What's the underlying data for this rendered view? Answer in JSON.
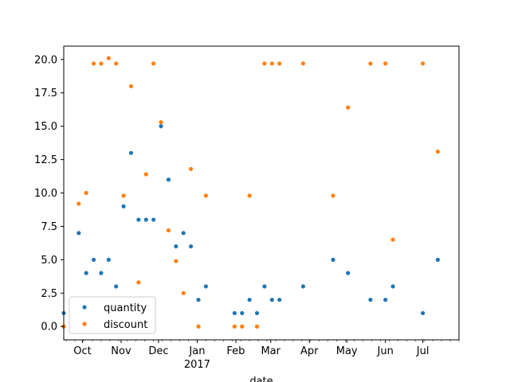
{
  "chart_data": {
    "type": "scatter",
    "title": "",
    "xlabel": "date",
    "ylabel": "",
    "xlim": [
      "2016-09-16",
      "2017-07-30"
    ],
    "ylim": [
      -1.0,
      21.0
    ],
    "grid": false,
    "legend_position": "lower-left",
    "x_ticks": [
      {
        "date": "2016-10-01",
        "label": "Oct"
      },
      {
        "date": "2016-11-01",
        "label": "Nov"
      },
      {
        "date": "2016-12-01",
        "label": "Dec"
      },
      {
        "date": "2017-01-01",
        "label": "Jan",
        "sublabel": "2017"
      },
      {
        "date": "2017-02-01",
        "label": "Feb"
      },
      {
        "date": "2017-03-01",
        "label": "Mar"
      },
      {
        "date": "2017-04-01",
        "label": "Apr"
      },
      {
        "date": "2017-05-01",
        "label": "May"
      },
      {
        "date": "2017-06-01",
        "label": "Jun"
      },
      {
        "date": "2017-07-01",
        "label": "Jul"
      }
    ],
    "y_ticks": [
      0.0,
      2.5,
      5.0,
      7.5,
      10.0,
      12.5,
      15.0,
      17.5,
      20.0
    ],
    "series": [
      {
        "name": "quantity",
        "color": "#1f77b4",
        "points": [
          {
            "x": "2016-09-16",
            "y": 1
          },
          {
            "x": "2016-09-28",
            "y": 7
          },
          {
            "x": "2016-10-04",
            "y": 4
          },
          {
            "x": "2016-10-10",
            "y": 5
          },
          {
            "x": "2016-10-16",
            "y": 4
          },
          {
            "x": "2016-10-22",
            "y": 5
          },
          {
            "x": "2016-10-28",
            "y": 3
          },
          {
            "x": "2016-11-03",
            "y": 9
          },
          {
            "x": "2016-11-09",
            "y": 13
          },
          {
            "x": "2016-11-15",
            "y": 8
          },
          {
            "x": "2016-11-21",
            "y": 8
          },
          {
            "x": "2016-11-27",
            "y": 8
          },
          {
            "x": "2016-12-03",
            "y": 15
          },
          {
            "x": "2016-12-09",
            "y": 11
          },
          {
            "x": "2016-12-15",
            "y": 6
          },
          {
            "x": "2016-12-21",
            "y": 7
          },
          {
            "x": "2016-12-27",
            "y": 6
          },
          {
            "x": "2017-01-02",
            "y": 2
          },
          {
            "x": "2017-01-08",
            "y": 3
          },
          {
            "x": "2017-01-31",
            "y": 1
          },
          {
            "x": "2017-02-06",
            "y": 1
          },
          {
            "x": "2017-02-12",
            "y": 2
          },
          {
            "x": "2017-02-18",
            "y": 1
          },
          {
            "x": "2017-02-24",
            "y": 3
          },
          {
            "x": "2017-03-02",
            "y": 2
          },
          {
            "x": "2017-03-08",
            "y": 2
          },
          {
            "x": "2017-03-27",
            "y": 3
          },
          {
            "x": "2017-04-20",
            "y": 5
          },
          {
            "x": "2017-05-02",
            "y": 4
          },
          {
            "x": "2017-05-20",
            "y": 2
          },
          {
            "x": "2017-06-01",
            "y": 2
          },
          {
            "x": "2017-06-07",
            "y": 3
          },
          {
            "x": "2017-07-01",
            "y": 1
          },
          {
            "x": "2017-07-13",
            "y": 5
          }
        ]
      },
      {
        "name": "discount",
        "color": "#ff7f0e",
        "points": [
          {
            "x": "2016-09-16",
            "y": 0.0
          },
          {
            "x": "2016-09-28",
            "y": 9.2
          },
          {
            "x": "2016-10-04",
            "y": 10.0
          },
          {
            "x": "2016-10-10",
            "y": 19.7
          },
          {
            "x": "2016-10-16",
            "y": 19.7
          },
          {
            "x": "2016-10-22",
            "y": 20.1
          },
          {
            "x": "2016-10-28",
            "y": 19.7
          },
          {
            "x": "2016-11-03",
            "y": 9.8
          },
          {
            "x": "2016-11-09",
            "y": 18.0
          },
          {
            "x": "2016-11-15",
            "y": 3.3
          },
          {
            "x": "2016-11-21",
            "y": 11.4
          },
          {
            "x": "2016-11-27",
            "y": 19.7
          },
          {
            "x": "2016-12-03",
            "y": 15.3
          },
          {
            "x": "2016-12-09",
            "y": 7.2
          },
          {
            "x": "2016-12-15",
            "y": 4.9
          },
          {
            "x": "2016-12-21",
            "y": 2.5
          },
          {
            "x": "2016-12-27",
            "y": 11.8
          },
          {
            "x": "2017-01-02",
            "y": 0.0
          },
          {
            "x": "2017-01-08",
            "y": 9.8
          },
          {
            "x": "2017-01-31",
            "y": 0.0
          },
          {
            "x": "2017-02-06",
            "y": 0.0
          },
          {
            "x": "2017-02-12",
            "y": 9.8
          },
          {
            "x": "2017-02-18",
            "y": 0.0
          },
          {
            "x": "2017-02-24",
            "y": 19.7
          },
          {
            "x": "2017-03-02",
            "y": 19.7
          },
          {
            "x": "2017-03-08",
            "y": 19.7
          },
          {
            "x": "2017-03-27",
            "y": 19.7
          },
          {
            "x": "2017-04-20",
            "y": 9.8
          },
          {
            "x": "2017-05-02",
            "y": 16.4
          },
          {
            "x": "2017-05-20",
            "y": 19.7
          },
          {
            "x": "2017-06-01",
            "y": 19.7
          },
          {
            "x": "2017-06-07",
            "y": 6.5
          },
          {
            "x": "2017-07-01",
            "y": 19.7
          },
          {
            "x": "2017-07-13",
            "y": 13.1
          }
        ]
      }
    ]
  }
}
